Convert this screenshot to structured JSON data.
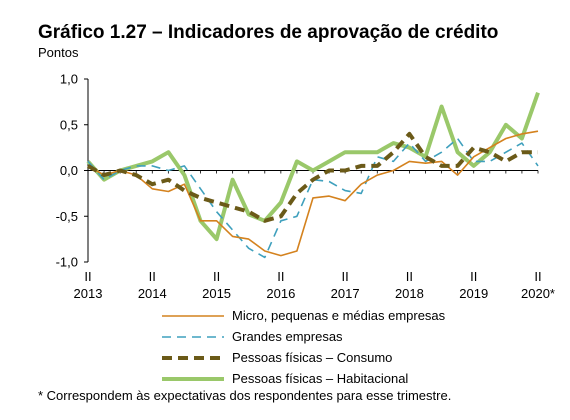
{
  "chart_data": {
    "type": "line",
    "title": "Gráfico 1.27 – Indicadores de aprovação de crédito",
    "ylabel": "Pontos",
    "xlabel": "",
    "ylim": [
      -1.0,
      1.0
    ],
    "yticks": [
      "1,0",
      "0,5",
      "0,0",
      "-0,5",
      "-1,0"
    ],
    "ytick_values": [
      1.0,
      0.5,
      0.0,
      -0.5,
      -1.0
    ],
    "x_quarter_labels": [
      "II",
      "II",
      "II",
      "II",
      "II",
      "II",
      "II",
      "II"
    ],
    "x_year_labels": [
      "2013",
      "2014",
      "2015",
      "2016",
      "2017",
      "2018",
      "2019",
      "2020*"
    ],
    "x_tick_indices": [
      0,
      4,
      8,
      12,
      16,
      20,
      24,
      28
    ],
    "x": [
      "2013 II",
      "2013 III",
      "2013 IV",
      "2014 I",
      "2014 II",
      "2014 III",
      "2014 IV",
      "2015 I",
      "2015 II",
      "2015 III",
      "2015 IV",
      "2016 I",
      "2016 II",
      "2016 III",
      "2016 IV",
      "2017 I",
      "2017 II",
      "2017 III",
      "2017 IV",
      "2018 I",
      "2018 II",
      "2018 III",
      "2018 IV",
      "2019 I",
      "2019 II",
      "2019 III",
      "2019 IV",
      "2020 I",
      "2020 II"
    ],
    "grid": "none",
    "legend_position": "bottom",
    "series": [
      {
        "name": "Micro, pequenas e médias empresas",
        "color": "#d4821e",
        "style": "solid",
        "values": [
          0.05,
          -0.05,
          0.0,
          -0.05,
          -0.2,
          -0.23,
          -0.15,
          -0.55,
          -0.55,
          -0.72,
          -0.75,
          -0.88,
          -0.93,
          -0.88,
          -0.3,
          -0.28,
          -0.33,
          -0.15,
          -0.05,
          0.0,
          0.1,
          0.08,
          0.1,
          -0.05,
          0.15,
          0.25,
          0.35,
          0.4,
          0.43
        ]
      },
      {
        "name": "Grandes empresas",
        "color": "#3fa0bd",
        "style": "dashed",
        "values": [
          0.1,
          -0.1,
          0.0,
          0.05,
          0.05,
          0.0,
          0.05,
          -0.2,
          -0.45,
          -0.65,
          -0.85,
          -0.95,
          -0.55,
          -0.5,
          -0.1,
          -0.12,
          -0.22,
          -0.25,
          0.15,
          0.1,
          0.3,
          0.1,
          0.2,
          0.35,
          0.1,
          0.1,
          0.2,
          0.3,
          0.05
        ]
      },
      {
        "name": "Pessoas físicas – Consumo",
        "color": "#6b5a18",
        "style": "thickdash",
        "values": [
          0.05,
          -0.05,
          0.0,
          -0.05,
          -0.15,
          -0.1,
          -0.22,
          -0.3,
          -0.35,
          -0.4,
          -0.45,
          -0.55,
          -0.5,
          -0.25,
          -0.1,
          0.0,
          0.0,
          0.05,
          0.05,
          0.2,
          0.4,
          0.15,
          0.05,
          0.05,
          0.25,
          0.2,
          0.1,
          0.2,
          0.2
        ]
      },
      {
        "name": "Pessoas físicas – Habitacional",
        "color": "#9ac86a",
        "style": "thick",
        "values": [
          0.1,
          -0.1,
          0.0,
          0.05,
          0.1,
          0.2,
          -0.05,
          -0.55,
          -0.75,
          -0.1,
          -0.48,
          -0.55,
          -0.35,
          0.1,
          0.0,
          0.1,
          0.2,
          0.2,
          0.2,
          0.3,
          0.25,
          0.15,
          0.7,
          0.2,
          0.05,
          0.2,
          0.5,
          0.35,
          0.85
        ]
      }
    ]
  },
  "footnote": "* Correspondem às expectativas dos respondentes para esse trimestre."
}
